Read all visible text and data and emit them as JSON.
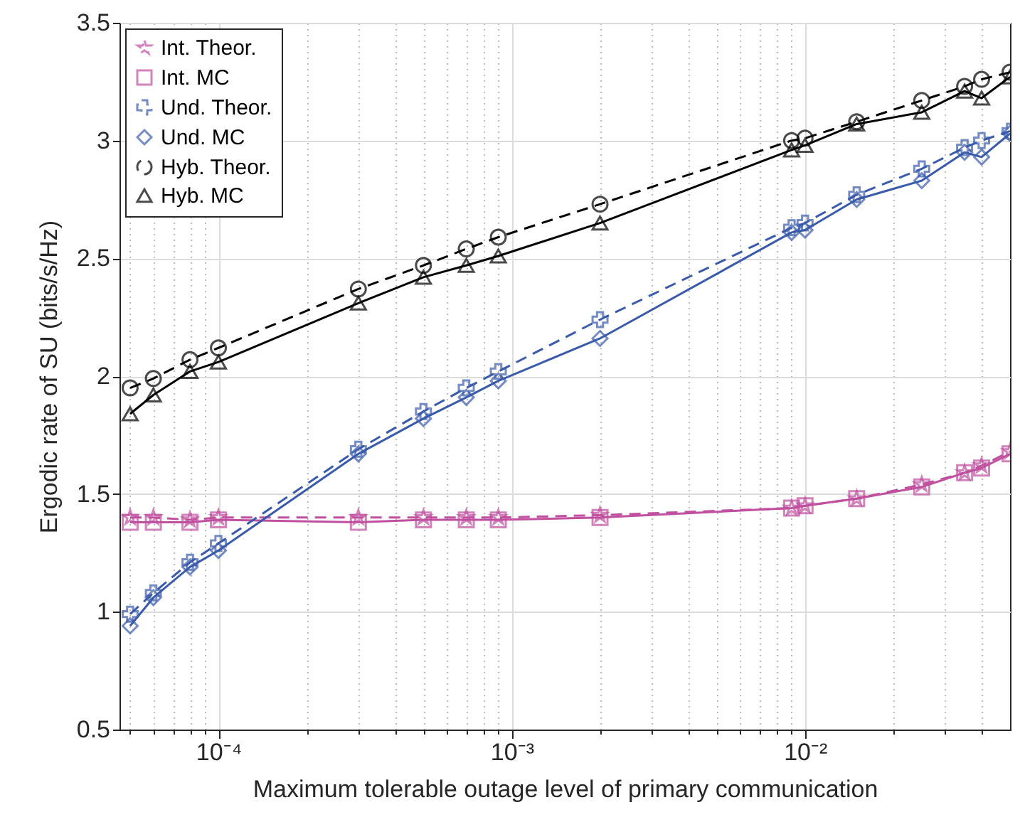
{
  "chart_data": {
    "type": "line",
    "xlabel": "Maximum tolerable outage level of primary communication",
    "ylabel": "Ergodic rate of SU (bits/s/Hz)",
    "x": [
      5e-05,
      6e-05,
      8e-05,
      0.0001,
      0.0003,
      0.0005,
      0.0007,
      0.0009,
      0.002,
      0.009,
      0.01,
      0.015,
      0.025,
      0.035,
      0.04,
      0.05
    ],
    "series": [
      {
        "name": "Int. Theor.",
        "color": "#c0509f",
        "line_style": "dashed",
        "marker": "star",
        "values": [
          1.4,
          1.4,
          1.39,
          1.4,
          1.4,
          1.4,
          1.4,
          1.4,
          1.41,
          1.44,
          1.45,
          1.48,
          1.54,
          1.59,
          1.62,
          1.68
        ]
      },
      {
        "name": "Int. MC",
        "color": "#c0509f",
        "line_style": "solid",
        "marker": "square",
        "values": [
          1.38,
          1.38,
          1.38,
          1.39,
          1.38,
          1.39,
          1.39,
          1.39,
          1.4,
          1.44,
          1.45,
          1.48,
          1.53,
          1.59,
          1.61,
          1.67
        ]
      },
      {
        "name": "Und. Theor.",
        "color": "#3a5bab",
        "line_style": "dashed",
        "marker": "cross",
        "values": [
          0.99,
          1.08,
          1.21,
          1.29,
          1.69,
          1.85,
          1.95,
          2.02,
          2.24,
          2.63,
          2.65,
          2.77,
          2.88,
          2.97,
          3.0,
          3.04
        ]
      },
      {
        "name": "Und. MC",
        "color": "#3a5bab",
        "line_style": "solid",
        "marker": "diamond",
        "values": [
          0.94,
          1.06,
          1.19,
          1.26,
          1.67,
          1.82,
          1.91,
          1.98,
          2.16,
          2.61,
          2.62,
          2.75,
          2.83,
          2.95,
          2.93,
          3.03
        ]
      },
      {
        "name": "Hyb. Theor.",
        "color": "#000000",
        "line_style": "dashed",
        "marker": "circle",
        "values": [
          1.95,
          1.99,
          2.07,
          2.12,
          2.37,
          2.47,
          2.54,
          2.59,
          2.73,
          3.0,
          3.01,
          3.08,
          3.17,
          3.23,
          3.26,
          3.29
        ]
      },
      {
        "name": "Hyb. MC",
        "color": "#000000",
        "line_style": "solid",
        "marker": "triangle",
        "values": [
          1.84,
          1.92,
          2.02,
          2.06,
          2.31,
          2.42,
          2.47,
          2.51,
          2.65,
          2.96,
          2.98,
          3.07,
          3.12,
          3.21,
          3.18,
          3.27
        ]
      }
    ],
    "log": "x",
    "xlim": [
      4.6e-05,
      0.05
    ],
    "xticks": [
      {
        "value": 5e-05,
        "label": null
      },
      {
        "value": 6e-05,
        "label": null
      },
      {
        "value": 7e-05,
        "label": null
      },
      {
        "value": 8e-05,
        "label": null
      },
      {
        "value": 9e-05,
        "label": null
      },
      {
        "value": 0.0001,
        "label": "10⁻⁴"
      },
      {
        "value": 0.0002,
        "label": null
      },
      {
        "value": 0.0003,
        "label": null
      },
      {
        "value": 0.0004,
        "label": null
      },
      {
        "value": 0.0005,
        "label": null
      },
      {
        "value": 0.0006,
        "label": null
      },
      {
        "value": 0.0007,
        "label": null
      },
      {
        "value": 0.0008,
        "label": null
      },
      {
        "value": 0.0009,
        "label": null
      },
      {
        "value": 0.001,
        "label": "10⁻³"
      },
      {
        "value": 0.002,
        "label": null
      },
      {
        "value": 0.003,
        "label": null
      },
      {
        "value": 0.004,
        "label": null
      },
      {
        "value": 0.005,
        "label": null
      },
      {
        "value": 0.006,
        "label": null
      },
      {
        "value": 0.007,
        "label": null
      },
      {
        "value": 0.008,
        "label": null
      },
      {
        "value": 0.009,
        "label": null
      },
      {
        "value": 0.01,
        "label": "10⁻²"
      },
      {
        "value": 0.02,
        "label": null
      },
      {
        "value": 0.03,
        "label": null
      },
      {
        "value": 0.04,
        "label": null
      }
    ],
    "ylim": [
      0.5,
      3.5
    ],
    "yticks": [
      0.5,
      1,
      1.5,
      2,
      2.5,
      3,
      3.5
    ],
    "grid": true,
    "legend": "top left"
  }
}
